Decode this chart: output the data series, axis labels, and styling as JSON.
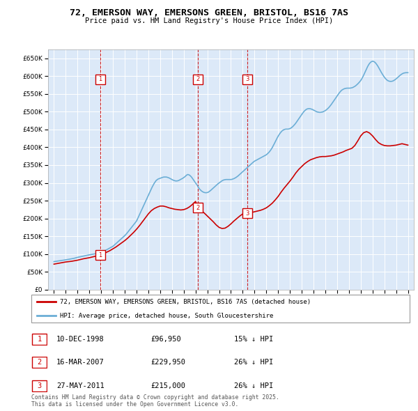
{
  "title": "72, EMERSON WAY, EMERSONS GREEN, BRISTOL, BS16 7AS",
  "subtitle": "Price paid vs. HM Land Registry's House Price Index (HPI)",
  "background_color": "#dce9f8",
  "plot_bg_color": "#dce9f8",
  "grid_color": "#ffffff",
  "ylim": [
    0,
    675000
  ],
  "yticks": [
    0,
    50000,
    100000,
    150000,
    200000,
    250000,
    300000,
    350000,
    400000,
    450000,
    500000,
    550000,
    600000,
    650000
  ],
  "xlim_start": 1994.5,
  "xlim_end": 2025.5,
  "xticks": [
    1995,
    1996,
    1997,
    1998,
    1999,
    2000,
    2001,
    2002,
    2003,
    2004,
    2005,
    2006,
    2007,
    2008,
    2009,
    2010,
    2011,
    2012,
    2013,
    2014,
    2015,
    2016,
    2017,
    2018,
    2019,
    2020,
    2021,
    2022,
    2023,
    2024,
    2025
  ],
  "hpi_color": "#6baed6",
  "price_color": "#cc0000",
  "vline_color": "#cc0000",
  "purchases": [
    {
      "num": 1,
      "year": 1998.94,
      "price": 96950
    },
    {
      "num": 2,
      "year": 2007.21,
      "price": 229950
    },
    {
      "num": 3,
      "year": 2011.41,
      "price": 215000
    }
  ],
  "legend_entries": [
    "72, EMERSON WAY, EMERSONS GREEN, BRISTOL, BS16 7AS (detached house)",
    "HPI: Average price, detached house, South Gloucestershire"
  ],
  "footnote": "Contains HM Land Registry data © Crown copyright and database right 2025.\nThis data is licensed under the Open Government Licence v3.0.",
  "table_rows": [
    {
      "num": 1,
      "date": "10-DEC-1998",
      "price": "£96,950",
      "pct": "15% ↓ HPI"
    },
    {
      "num": 2,
      "date": "16-MAR-2007",
      "price": "£229,950",
      "pct": "26% ↓ HPI"
    },
    {
      "num": 3,
      "date": "27-MAY-2011",
      "price": "£215,000",
      "pct": "26% ↓ HPI"
    }
  ],
  "hpi_x": [
    1995.0,
    1995.083,
    1995.167,
    1995.25,
    1995.333,
    1995.417,
    1995.5,
    1995.583,
    1995.667,
    1995.75,
    1995.833,
    1995.917,
    1996.0,
    1996.083,
    1996.167,
    1996.25,
    1996.333,
    1996.417,
    1996.5,
    1996.583,
    1996.667,
    1996.75,
    1996.833,
    1996.917,
    1997.0,
    1997.083,
    1997.167,
    1997.25,
    1997.333,
    1997.417,
    1997.5,
    1997.583,
    1997.667,
    1997.75,
    1997.833,
    1997.917,
    1998.0,
    1998.083,
    1998.167,
    1998.25,
    1998.333,
    1998.417,
    1998.5,
    1998.583,
    1998.667,
    1998.75,
    1998.833,
    1998.917,
    1999.0,
    1999.083,
    1999.167,
    1999.25,
    1999.333,
    1999.417,
    1999.5,
    1999.583,
    1999.667,
    1999.75,
    1999.833,
    1999.917,
    2000.0,
    2000.083,
    2000.167,
    2000.25,
    2000.333,
    2000.417,
    2000.5,
    2000.583,
    2000.667,
    2000.75,
    2000.833,
    2000.917,
    2001.0,
    2001.083,
    2001.167,
    2001.25,
    2001.333,
    2001.417,
    2001.5,
    2001.583,
    2001.667,
    2001.75,
    2001.833,
    2001.917,
    2002.0,
    2002.083,
    2002.167,
    2002.25,
    2002.333,
    2002.417,
    2002.5,
    2002.583,
    2002.667,
    2002.75,
    2002.833,
    2002.917,
    2003.0,
    2003.083,
    2003.167,
    2003.25,
    2003.333,
    2003.417,
    2003.5,
    2003.583,
    2003.667,
    2003.75,
    2003.833,
    2003.917,
    2004.0,
    2004.083,
    2004.167,
    2004.25,
    2004.333,
    2004.417,
    2004.5,
    2004.583,
    2004.667,
    2004.75,
    2004.833,
    2004.917,
    2005.0,
    2005.083,
    2005.167,
    2005.25,
    2005.333,
    2005.417,
    2005.5,
    2005.583,
    2005.667,
    2005.75,
    2005.833,
    2005.917,
    2006.0,
    2006.083,
    2006.167,
    2006.25,
    2006.333,
    2006.417,
    2006.5,
    2006.583,
    2006.667,
    2006.75,
    2006.833,
    2006.917,
    2007.0,
    2007.083,
    2007.167,
    2007.25,
    2007.333,
    2007.417,
    2007.5,
    2007.583,
    2007.667,
    2007.75,
    2007.833,
    2007.917,
    2008.0,
    2008.083,
    2008.167,
    2008.25,
    2008.333,
    2008.417,
    2008.5,
    2008.583,
    2008.667,
    2008.75,
    2008.833,
    2008.917,
    2009.0,
    2009.083,
    2009.167,
    2009.25,
    2009.333,
    2009.417,
    2009.5,
    2009.583,
    2009.667,
    2009.75,
    2009.833,
    2009.917,
    2010.0,
    2010.083,
    2010.167,
    2010.25,
    2010.333,
    2010.417,
    2010.5,
    2010.583,
    2010.667,
    2010.75,
    2010.833,
    2010.917,
    2011.0,
    2011.083,
    2011.167,
    2011.25,
    2011.333,
    2011.417,
    2011.5,
    2011.583,
    2011.667,
    2011.75,
    2011.833,
    2011.917,
    2012.0,
    2012.083,
    2012.167,
    2012.25,
    2012.333,
    2012.417,
    2012.5,
    2012.583,
    2012.667,
    2012.75,
    2012.833,
    2012.917,
    2013.0,
    2013.083,
    2013.167,
    2013.25,
    2013.333,
    2013.417,
    2013.5,
    2013.583,
    2013.667,
    2013.75,
    2013.833,
    2013.917,
    2014.0,
    2014.083,
    2014.167,
    2014.25,
    2014.333,
    2014.417,
    2014.5,
    2014.583,
    2014.667,
    2014.75,
    2014.833,
    2014.917,
    2015.0,
    2015.083,
    2015.167,
    2015.25,
    2015.333,
    2015.417,
    2015.5,
    2015.583,
    2015.667,
    2015.75,
    2015.833,
    2015.917,
    2016.0,
    2016.083,
    2016.167,
    2016.25,
    2016.333,
    2016.417,
    2016.5,
    2016.583,
    2016.667,
    2016.75,
    2016.833,
    2016.917,
    2017.0,
    2017.083,
    2017.167,
    2017.25,
    2017.333,
    2017.417,
    2017.5,
    2017.583,
    2017.667,
    2017.75,
    2017.833,
    2017.917,
    2018.0,
    2018.083,
    2018.167,
    2018.25,
    2018.333,
    2018.417,
    2018.5,
    2018.583,
    2018.667,
    2018.75,
    2018.833,
    2018.917,
    2019.0,
    2019.083,
    2019.167,
    2019.25,
    2019.333,
    2019.417,
    2019.5,
    2019.583,
    2019.667,
    2019.75,
    2019.833,
    2019.917,
    2020.0,
    2020.083,
    2020.167,
    2020.25,
    2020.333,
    2020.417,
    2020.5,
    2020.583,
    2020.667,
    2020.75,
    2020.833,
    2020.917,
    2021.0,
    2021.083,
    2021.167,
    2021.25,
    2021.333,
    2021.417,
    2021.5,
    2021.583,
    2021.667,
    2021.75,
    2021.833,
    2021.917,
    2022.0,
    2022.083,
    2022.167,
    2022.25,
    2022.333,
    2022.417,
    2022.5,
    2022.583,
    2022.667,
    2022.75,
    2022.833,
    2022.917,
    2023.0,
    2023.083,
    2023.167,
    2023.25,
    2023.333,
    2023.417,
    2023.5,
    2023.583,
    2023.667,
    2023.75,
    2023.833,
    2023.917,
    2024.0,
    2024.083,
    2024.167,
    2024.25,
    2024.333,
    2024.417,
    2024.5,
    2024.583,
    2024.667,
    2024.75,
    2024.833,
    2024.917,
    2025.0
  ],
  "hpi_y": [
    79000,
    79400,
    79800,
    80200,
    80600,
    81000,
    81400,
    81800,
    82200,
    82600,
    83000,
    83500,
    84000,
    84500,
    85000,
    85500,
    86000,
    86500,
    87000,
    87500,
    88000,
    88800,
    89600,
    90400,
    91000,
    91600,
    92200,
    92800,
    93400,
    94000,
    94600,
    95200,
    95800,
    96400,
    97000,
    97500,
    98000,
    98500,
    99000,
    99500,
    100000,
    100500,
    101000,
    101500,
    102000,
    102500,
    103000,
    103500,
    104000,
    105500,
    107000,
    108500,
    110000,
    111500,
    113000,
    114500,
    116000,
    117500,
    119000,
    120500,
    122000,
    124500,
    127000,
    129500,
    132000,
    134500,
    137000,
    139500,
    142000,
    144500,
    147000,
    149500,
    152000,
    155000,
    158000,
    161500,
    165000,
    168500,
    172000,
    175500,
    179000,
    182500,
    186000,
    189500,
    193000,
    199000,
    205000,
    211000,
    217000,
    223000,
    229000,
    235000,
    241000,
    247000,
    253000,
    259000,
    265000,
    271000,
    277000,
    283000,
    289000,
    294000,
    299000,
    303000,
    307000,
    309000,
    311000,
    312000,
    313000,
    314000,
    315000,
    316000,
    316500,
    316500,
    316500,
    316000,
    315000,
    314000,
    312500,
    311000,
    309500,
    308000,
    307000,
    306000,
    305500,
    305500,
    306000,
    307000,
    308500,
    310000,
    311500,
    313000,
    315000,
    317000,
    319500,
    322000,
    323500,
    323000,
    321500,
    319000,
    316000,
    312000,
    308000,
    304000,
    300000,
    296000,
    291500,
    287000,
    283000,
    280000,
    277500,
    275500,
    274000,
    273000,
    272500,
    272500,
    273000,
    274000,
    276000,
    278000,
    280500,
    283000,
    285500,
    288000,
    290500,
    293000,
    295500,
    298000,
    300000,
    302000,
    304000,
    306000,
    307500,
    308500,
    309000,
    309500,
    309500,
    309500,
    309500,
    309500,
    309500,
    310000,
    311000,
    312000,
    313500,
    315000,
    317000,
    319000,
    321500,
    324000,
    326500,
    329000,
    331500,
    334000,
    336500,
    339000,
    341500,
    344000,
    346500,
    349000,
    351500,
    354000,
    356500,
    359000,
    361000,
    362500,
    364000,
    365500,
    367000,
    368500,
    370000,
    371500,
    373000,
    374500,
    376000,
    377500,
    379000,
    381500,
    384000,
    387000,
    390500,
    394500,
    399000,
    404000,
    409500,
    415000,
    420500,
    426000,
    431000,
    435500,
    439500,
    443000,
    446000,
    448000,
    449500,
    450500,
    451000,
    451000,
    451000,
    451500,
    452500,
    454000,
    456000,
    458500,
    461500,
    464500,
    468000,
    472000,
    476000,
    480000,
    484000,
    488000,
    492000,
    496000,
    499500,
    502500,
    505000,
    507000,
    508000,
    508500,
    508500,
    508000,
    507000,
    506000,
    504500,
    503000,
    501500,
    500000,
    499000,
    498500,
    498000,
    498000,
    498500,
    499000,
    500000,
    501500,
    503000,
    505000,
    507500,
    510000,
    513000,
    516500,
    520000,
    524000,
    528000,
    532000,
    536000,
    540000,
    544000,
    548000,
    552000,
    555500,
    558500,
    561000,
    562500,
    564000,
    565000,
    565500,
    566000,
    566000,
    566000,
    566000,
    566500,
    567000,
    568000,
    569500,
    571000,
    573000,
    575500,
    578000,
    581000,
    584000,
    587500,
    592000,
    597000,
    602500,
    608500,
    615000,
    621000,
    626500,
    631500,
    635500,
    638500,
    640500,
    641500,
    641000,
    639500,
    637000,
    633500,
    629500,
    625000,
    620000,
    615000,
    610000,
    605500,
    601000,
    597000,
    593500,
    590500,
    588000,
    586500,
    585500,
    585000,
    585000,
    585500,
    586500,
    588000,
    590000,
    592000,
    594500,
    597000,
    599500,
    602000,
    604000,
    606000,
    607500,
    608500,
    609000,
    609500,
    609500,
    609500,
    609500,
    609000,
    608500,
    607500,
    606500,
    605500,
    604500,
    603500,
    602500,
    602000,
    601500,
    600500,
    599500,
    598500,
    597500,
    596500,
    595500,
    595000,
    594500,
    594000,
    594000,
    593500,
    593000,
    593000,
    593500,
    594000,
    595000,
    596500,
    598000,
    599500,
    601000,
    603000,
    605000,
    607000,
    609000,
    611000,
    613000,
    615000,
    617000,
    619000,
    621000,
    623000,
    625000,
    627000,
    629000,
    631000,
    633000,
    635000
  ],
  "price_x": [
    1995.0,
    1995.5,
    1996.0,
    1996.5,
    1997.0,
    1997.5,
    1998.0,
    1998.5,
    1998.94,
    1999.0,
    1999.25,
    1999.5,
    1999.75,
    2000.0,
    2000.25,
    2000.5,
    2000.75,
    2001.0,
    2001.25,
    2001.5,
    2001.75,
    2002.0,
    2002.25,
    2002.5,
    2002.75,
    2003.0,
    2003.25,
    2003.5,
    2003.75,
    2004.0,
    2004.25,
    2004.5,
    2004.75,
    2005.0,
    2005.25,
    2005.5,
    2005.75,
    2006.0,
    2006.25,
    2006.5,
    2006.75,
    2007.0,
    2007.21,
    2007.5,
    2007.75,
    2008.0,
    2008.25,
    2008.5,
    2008.75,
    2009.0,
    2009.25,
    2009.5,
    2009.75,
    2010.0,
    2010.25,
    2010.5,
    2010.75,
    2011.0,
    2011.25,
    2011.41,
    2011.5,
    2011.75,
    2012.0,
    2012.25,
    2012.5,
    2012.75,
    2013.0,
    2013.25,
    2013.5,
    2013.75,
    2014.0,
    2014.25,
    2014.5,
    2014.75,
    2015.0,
    2015.25,
    2015.5,
    2015.75,
    2016.0,
    2016.25,
    2016.5,
    2016.75,
    2017.0,
    2017.25,
    2017.5,
    2017.75,
    2018.0,
    2018.25,
    2018.5,
    2018.75,
    2019.0,
    2019.25,
    2019.5,
    2019.75,
    2020.0,
    2020.25,
    2020.5,
    2020.75,
    2021.0,
    2021.25,
    2021.5,
    2021.75,
    2022.0,
    2022.25,
    2022.5,
    2022.75,
    2023.0,
    2023.25,
    2023.5,
    2023.75,
    2024.0,
    2024.25,
    2024.5,
    2024.75,
    2025.0
  ],
  "price_y": [
    72000,
    75000,
    78000,
    80000,
    83000,
    87000,
    90000,
    94000,
    96950,
    99000,
    102000,
    106000,
    110000,
    115000,
    120000,
    126000,
    132000,
    138000,
    145000,
    153000,
    161000,
    170000,
    180000,
    191000,
    202000,
    213000,
    222000,
    228000,
    232000,
    235000,
    235000,
    233000,
    230000,
    228000,
    226000,
    225000,
    224000,
    225000,
    228000,
    233000,
    240000,
    248000,
    229950,
    222000,
    215000,
    207000,
    199000,
    191000,
    182000,
    175000,
    172000,
    173000,
    178000,
    185000,
    193000,
    200000,
    207000,
    213000,
    216000,
    215000,
    215500,
    217000,
    219000,
    221000,
    223000,
    226000,
    230000,
    236000,
    243000,
    252000,
    262000,
    274000,
    285000,
    295000,
    305000,
    316000,
    328000,
    338000,
    346000,
    354000,
    360000,
    365000,
    368000,
    371000,
    373000,
    374000,
    374000,
    375000,
    376000,
    378000,
    381000,
    384000,
    387000,
    391000,
    394000,
    397000,
    405000,
    418000,
    432000,
    441000,
    444000,
    440000,
    432000,
    422000,
    413000,
    408000,
    405000,
    404000,
    404000,
    405000,
    406000,
    408000,
    410000,
    408000,
    406000
  ]
}
